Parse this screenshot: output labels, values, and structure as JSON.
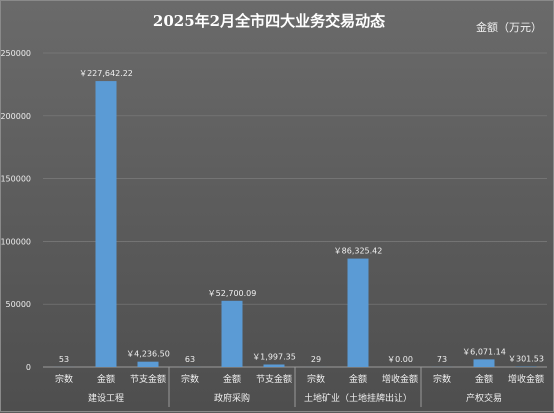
{
  "chart_data": {
    "type": "bar",
    "title": "2025年2月全市四大业务交易动态",
    "unit_label": "金额（万元）",
    "ylim": [
      0,
      250000
    ],
    "yticks": [
      "0",
      "50000",
      "100000",
      "150000",
      "200000",
      "250000"
    ],
    "grid": true,
    "bar_color": "#5b9bd5",
    "groups": [
      {
        "name": "建设工程",
        "categories": [
          "宗数",
          "金额",
          "节支金额"
        ],
        "values": [
          53,
          227642.22,
          4236.5
        ],
        "labels": [
          "53",
          "￥227,642.22",
          "￥4,236.50"
        ]
      },
      {
        "name": "政府采购",
        "categories": [
          "宗数",
          "金额",
          "节支金额"
        ],
        "values": [
          63,
          52700.09,
          1997.35
        ],
        "labels": [
          "63",
          "￥52,700.09",
          "￥1,997.35"
        ]
      },
      {
        "name": "土地矿业（土地挂牌出让）",
        "categories": [
          "宗数",
          "金额",
          "增收金额"
        ],
        "values": [
          29,
          86325.42,
          0
        ],
        "labels": [
          "29",
          "￥86,325.42",
          "￥0.00"
        ]
      },
      {
        "name": "产权交易",
        "categories": [
          "宗数",
          "金额",
          "增收金额"
        ],
        "values": [
          73,
          6071.14,
          301.53
        ],
        "labels": [
          "73",
          "￥6,071.14",
          "￥301.53"
        ]
      }
    ]
  }
}
